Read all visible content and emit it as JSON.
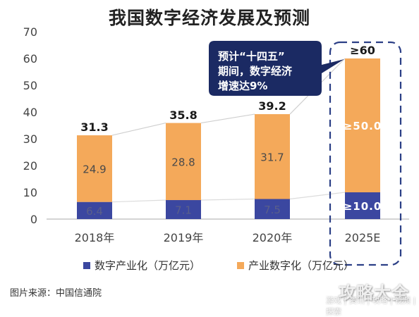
{
  "title": "我国数字经济发展及预测",
  "source": "图片来源：中国信通院",
  "watermark": "攻略大全",
  "watermark_sub": "游戏 | 资讯 | 攻略 | 视频 | 探索",
  "callout": {
    "lines": [
      "预计“十四五”",
      "期间，数字经济",
      "增速达9%"
    ]
  },
  "colors": {
    "digital_industrialization": "#3b47a0",
    "industrial_digitalization": "#f4a95a",
    "callout_bg": "#1b2a63",
    "dashed_border": "#2b3f86",
    "axis_text": "#444444"
  },
  "chart_data": {
    "type": "bar",
    "stacked": true,
    "categories": [
      "2018年",
      "2019年",
      "2020年",
      "2025E"
    ],
    "ylim": [
      0,
      70
    ],
    "yticks": [
      0,
      10,
      20,
      30,
      40,
      50,
      60,
      70
    ],
    "series": [
      {
        "name": "数字产业化（万亿元）",
        "values": [
          6.4,
          7.1,
          7.5,
          10.0
        ],
        "labels": [
          "6.4",
          "7.1",
          "7.5",
          "≥10.0"
        ]
      },
      {
        "name": "产业数字化（万亿元）",
        "values": [
          24.9,
          28.8,
          31.7,
          50.0
        ],
        "labels": [
          "24.9",
          "28.8",
          "31.7",
          "≥50.0"
        ]
      }
    ],
    "totals": [
      31.3,
      35.8,
      39.2,
      60
    ],
    "total_labels": [
      "31.3",
      "35.8",
      "39.2",
      "≥60"
    ],
    "grid": false,
    "legend_position": "bottom"
  }
}
